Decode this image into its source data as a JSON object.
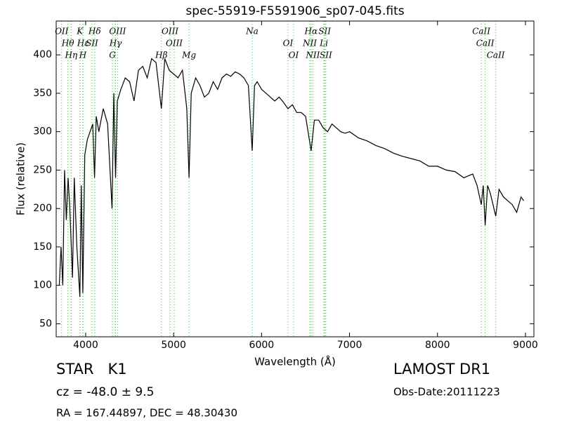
{
  "chart_data": {
    "type": "line",
    "title": "spec-55919-F5591906_sp07-045.fits",
    "x_label": "Wavelength (Å)",
    "y_label": "Flux (relative)",
    "xlim": [
      3665,
      9096
    ],
    "ylim": [
      33,
      444
    ],
    "xticks": [
      4000,
      5000,
      6000,
      7000,
      8000,
      9000
    ],
    "yticks": [
      50,
      100,
      150,
      200,
      250,
      300,
      350,
      400
    ],
    "series": [
      {
        "color": "#000000",
        "x": [
          3700,
          3720,
          3740,
          3760,
          3780,
          3800,
          3820,
          3850,
          3870,
          3900,
          3934,
          3950,
          3968,
          3990,
          4020,
          4050,
          4080,
          4101,
          4120,
          4150,
          4200,
          4250,
          4300,
          4320,
          4340,
          4360,
          4400,
          4450,
          4500,
          4550,
          4600,
          4650,
          4700,
          4750,
          4800,
          4861,
          4900,
          4950,
          5000,
          5050,
          5100,
          5150,
          5175,
          5200,
          5250,
          5300,
          5350,
          5400,
          5450,
          5500,
          5550,
          5600,
          5650,
          5700,
          5750,
          5800,
          5850,
          5893,
          5920,
          5950,
          6000,
          6050,
          6100,
          6150,
          6200,
          6250,
          6300,
          6350,
          6400,
          6450,
          6500,
          6563,
          6600,
          6650,
          6700,
          6750,
          6800,
          6850,
          6900,
          6950,
          7000,
          7100,
          7200,
          7300,
          7400,
          7500,
          7600,
          7700,
          7800,
          7900,
          8000,
          8100,
          8200,
          8300,
          8400,
          8450,
          8498,
          8520,
          8542,
          8570,
          8600,
          8662,
          8700,
          8750,
          8800,
          8850,
          8900,
          8950,
          8980
        ],
        "values": [
          100,
          150,
          100,
          250,
          185,
          240,
          200,
          110,
          240,
          150,
          85,
          230,
          90,
          270,
          290,
          300,
          310,
          240,
          320,
          300,
          330,
          310,
          200,
          350,
          240,
          340,
          355,
          370,
          365,
          340,
          380,
          385,
          370,
          395,
          390,
          330,
          395,
          380,
          375,
          370,
          380,
          330,
          240,
          350,
          370,
          360,
          345,
          350,
          365,
          355,
          370,
          375,
          372,
          378,
          375,
          370,
          360,
          275,
          360,
          365,
          355,
          350,
          345,
          340,
          345,
          338,
          330,
          335,
          325,
          325,
          320,
          275,
          315,
          315,
          305,
          300,
          310,
          305,
          300,
          298,
          300,
          292,
          288,
          282,
          278,
          272,
          268,
          265,
          262,
          255,
          255,
          250,
          248,
          240,
          245,
          230,
          205,
          230,
          178,
          230,
          220,
          190,
          225,
          215,
          210,
          205,
          195,
          215,
          210
        ]
      }
    ],
    "line_color": "#4caf50",
    "spectral_lines": [
      {
        "label": "OII",
        "x": 3727
      },
      {
        "label": "Hθ",
        "x": 3798
      },
      {
        "label": "Hη",
        "x": 3835
      },
      {
        "label": "K",
        "x": 3934
      },
      {
        "label": "Hε",
        "x": 3970
      },
      {
        "label": "H",
        "x": 3968
      },
      {
        "label": "Hδ",
        "x": 4102
      },
      {
        "label": "SII",
        "x": 4072
      },
      {
        "label": "G",
        "x": 4304
      },
      {
        "label": "OIII",
        "x": 4363
      },
      {
        "label": "Hγ",
        "x": 4340
      },
      {
        "label": "Hβ",
        "x": 4861
      },
      {
        "label": "OIII",
        "x": 4959
      },
      {
        "label": "OIII",
        "x": 5007
      },
      {
        "label": "Mg",
        "x": 5175
      },
      {
        "label": "Na",
        "x": 5893
      },
      {
        "label": "OI",
        "x": 6300
      },
      {
        "label": "OI",
        "x": 6364
      },
      {
        "label": "Hα",
        "x": 6563
      },
      {
        "label": "NII",
        "x": 6548
      },
      {
        "label": "NII",
        "x": 6583
      },
      {
        "label": "SII",
        "x": 6717
      },
      {
        "label": "Li",
        "x": 6708
      },
      {
        "label": "SII",
        "x": 6731
      },
      {
        "label": "CaII",
        "x": 8498
      },
      {
        "label": "CaII",
        "x": 8542
      },
      {
        "label": "CaII",
        "x": 8662
      }
    ],
    "annotations": {
      "object": "STAR   K1",
      "survey": "LAMOST DR1",
      "redshift": "cz = -48.0 ± 9.5",
      "date": "Obs-Date:20111223",
      "coords": "RA = 167.44897, DEC = 48.30430"
    }
  }
}
